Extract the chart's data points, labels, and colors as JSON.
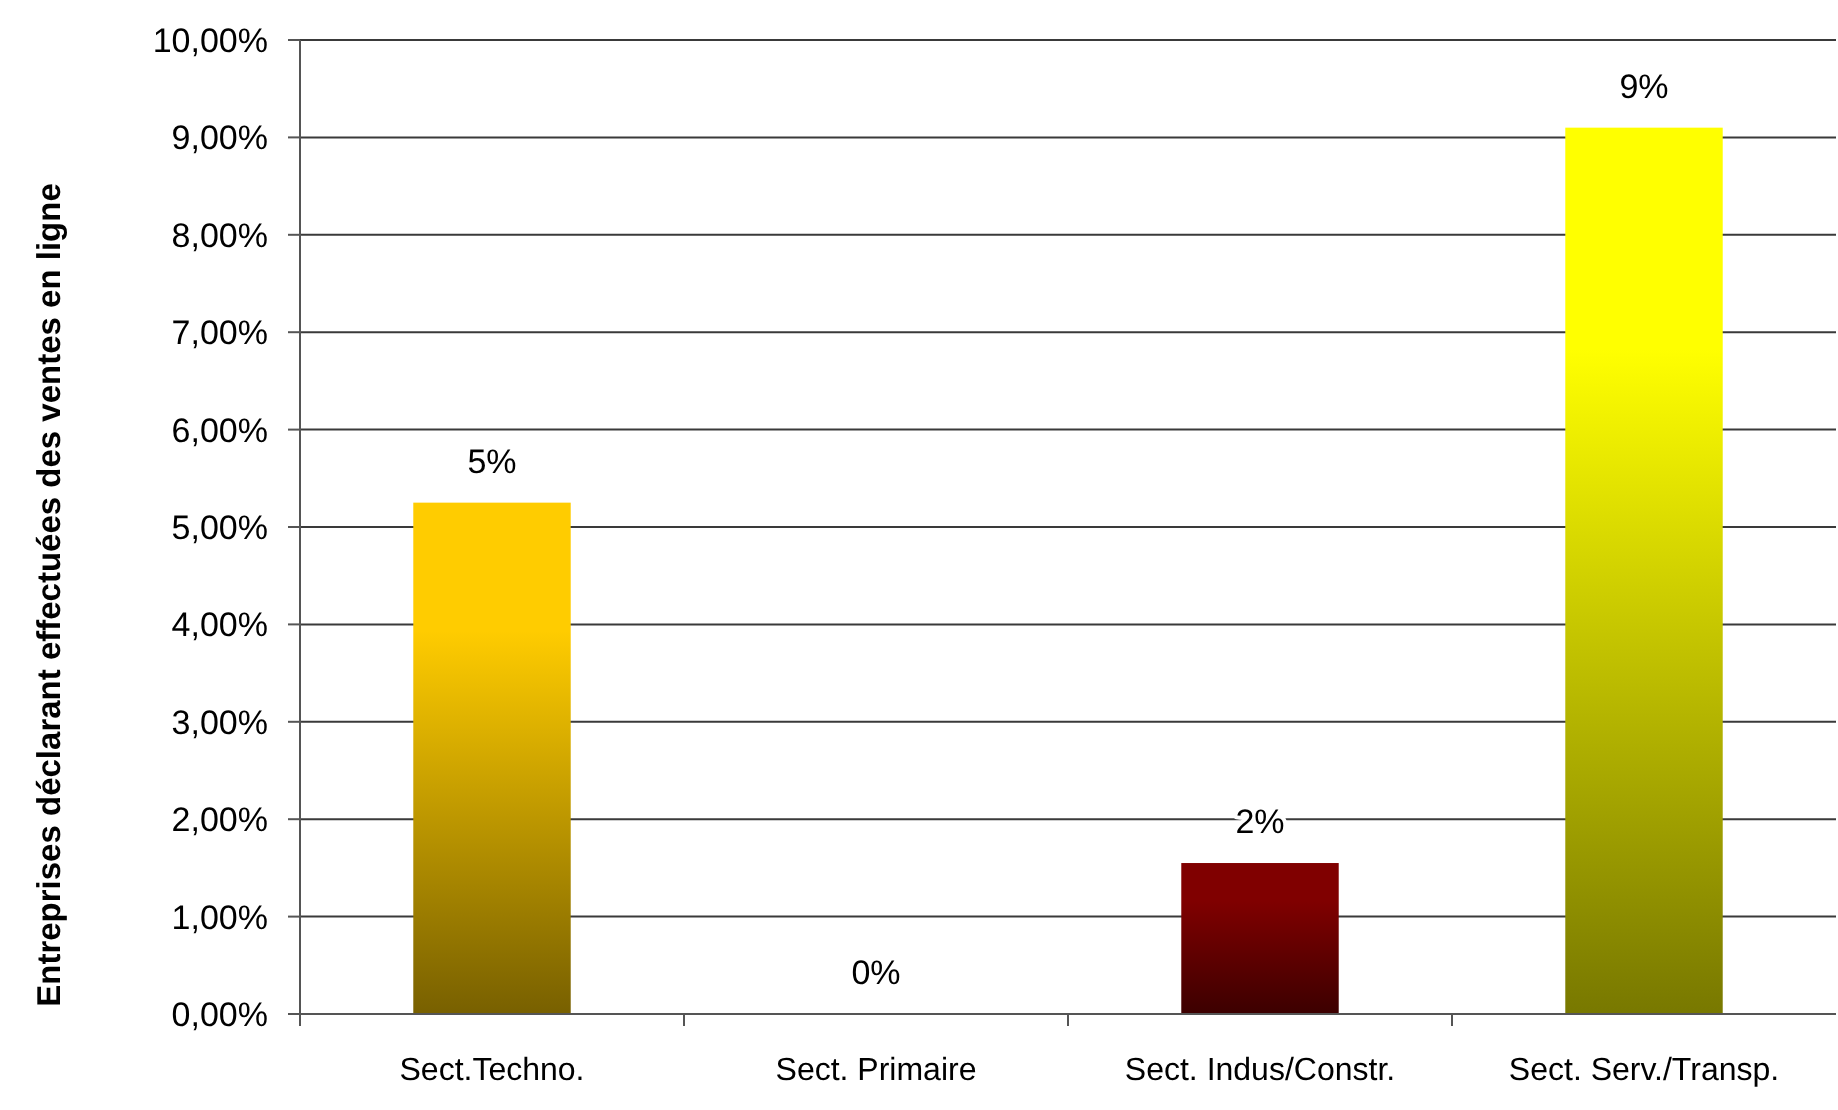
{
  "chart_data": {
    "type": "bar",
    "ylabel": "Entreprises déclarant effectuées des ventes en ligne",
    "categories": [
      "Sect.Techno.",
      "Sect. Primaire",
      "Sect. Indus/Constr.",
      "Sect. Serv./Transp."
    ],
    "values": [
      5.25,
      0,
      1.55,
      9.1
    ],
    "value_labels": [
      "5%",
      "0%",
      "2%",
      "9%"
    ],
    "colors": [
      "#ffcc00",
      "#ff9900",
      "#800000",
      "#ffff00"
    ],
    "ylim": [
      0,
      10
    ],
    "yticks": [
      {
        "value": 0,
        "label": "0,00%"
      },
      {
        "value": 1,
        "label": "1,00%"
      },
      {
        "value": 2,
        "label": "2,00%"
      },
      {
        "value": 3,
        "label": "3,00%"
      },
      {
        "value": 4,
        "label": "4,00%"
      },
      {
        "value": 5,
        "label": "5,00%"
      },
      {
        "value": 6,
        "label": "6,00%"
      },
      {
        "value": 7,
        "label": "7,00%"
      },
      {
        "value": 8,
        "label": "8,00%"
      },
      {
        "value": 9,
        "label": "9,00%"
      },
      {
        "value": 10,
        "label": "10,00%"
      }
    ],
    "grid": "y"
  }
}
